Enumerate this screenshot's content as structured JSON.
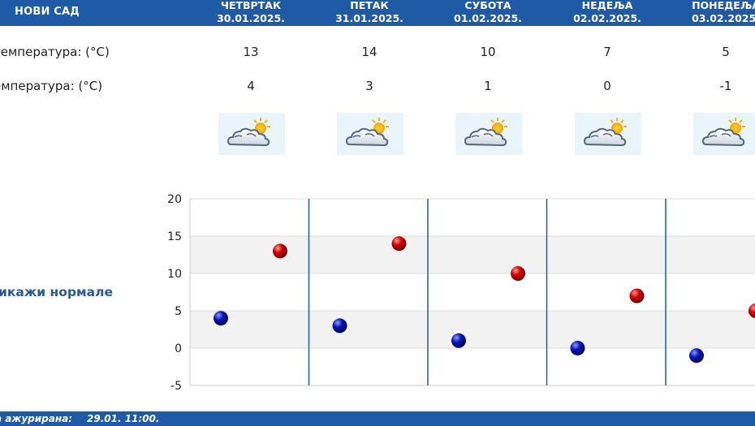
{
  "header": {
    "city": "НОВИ САД",
    "days": [
      {
        "name": "ЧЕТВРТАК",
        "date": "30.01.2025."
      },
      {
        "name": "ПЕТАК",
        "date": "31.01.2025."
      },
      {
        "name": "СУБОТА",
        "date": "01.02.2025."
      },
      {
        "name": "НЕДЕЉА",
        "date": "02.02.2025."
      },
      {
        "name": "ПОНЕДЕЉА",
        "date": "03.02.2025."
      }
    ]
  },
  "rows": {
    "max_label": "температура: (°C)",
    "min_label": "емпература: (°C)",
    "icon_label": ":",
    "max_values": [
      "13",
      "14",
      "10",
      "7",
      "5"
    ],
    "min_values": [
      "4",
      "3",
      "1",
      "0",
      "-1"
    ],
    "icons": [
      "partly-cloudy-icon",
      "partly-cloudy-icon",
      "partly-cloudy-icon",
      "partly-cloudy-icon",
      "partly-cloudy-icon"
    ]
  },
  "normals_link": "икажи нормале",
  "footer": {
    "label": "а ажурирана:",
    "value": "29.01. 11:00."
  },
  "colors": {
    "header_bg": "#1f5aa6",
    "max_dot": "#d40000",
    "min_dot": "#0a14b8",
    "day_divider": "#1f5aa6"
  },
  "chart_data": {
    "type": "scatter",
    "ylim": [
      -5,
      20
    ],
    "yticks": [
      "20",
      "15",
      "10",
      "5",
      "0",
      "-5"
    ],
    "categories": [
      "30.01.2025.",
      "31.01.2025.",
      "01.02.2025.",
      "02.02.2025.",
      "03.02.2025."
    ],
    "series": [
      {
        "values": [
          13,
          14,
          10,
          7,
          5
        ],
        "color": "#d40000"
      },
      {
        "values": [
          4,
          3,
          1,
          0,
          -1
        ],
        "color": "#0a14b8"
      }
    ],
    "grid": true
  }
}
